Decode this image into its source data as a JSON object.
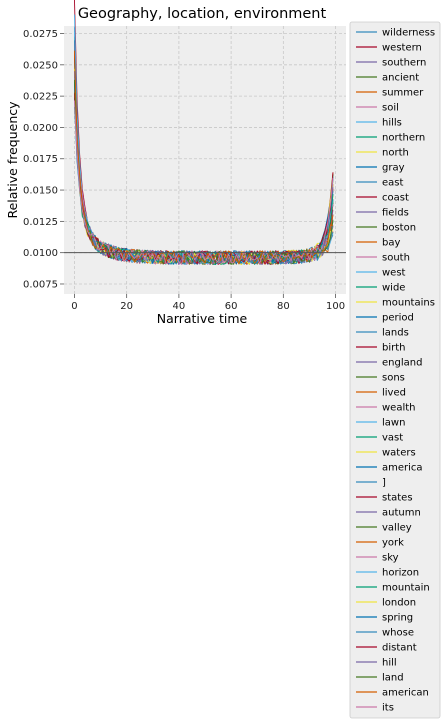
{
  "chart_data": {
    "type": "line",
    "title": "Geography, location, environment",
    "xlabel": "Narrative time",
    "ylabel": "Relative frequency",
    "xlim": [
      -4,
      104
    ],
    "ylim": [
      0.0067,
      0.0281
    ],
    "x_ticks": [
      0,
      20,
      40,
      60,
      80,
      100
    ],
    "x_tick_labels": [
      "0",
      "20",
      "40",
      "60",
      "80",
      "100"
    ],
    "y_ticks": [
      0.0075,
      0.01,
      0.0125,
      0.015,
      0.0175,
      0.02,
      0.0225,
      0.025,
      0.0275
    ],
    "y_tick_labels": [
      "0.0075",
      "0.0100",
      "0.0125",
      "0.0150",
      "0.0175",
      "0.0200",
      "0.0225",
      "0.0250",
      "0.0275"
    ],
    "reference_line_y": 0.01,
    "grid": true,
    "legend_position": "outside-right",
    "x_range": [
      0,
      99
    ],
    "series_shape_note": "",
    "palette": [
      "#348ABD",
      "#A60628",
      "#7A68A6",
      "#467821",
      "#D55E00",
      "#CC79A7",
      "#56B4E9",
      "#009E73",
      "#F0E442",
      "#0072B2"
    ],
    "series": [
      {
        "name": "wilderness",
        "start": 0.0245
      },
      {
        "name": "western",
        "start": 0.0272
      },
      {
        "name": "southern",
        "start": 0.0215
      },
      {
        "name": "ancient",
        "start": 0.0205
      },
      {
        "name": "summer",
        "start": 0.0232
      },
      {
        "name": "soil",
        "start": 0.0198
      },
      {
        "name": "hills",
        "start": 0.0225
      },
      {
        "name": "northern",
        "start": 0.0238
      },
      {
        "name": "north",
        "start": 0.0195
      },
      {
        "name": "gray",
        "start": 0.0188
      },
      {
        "name": "east",
        "start": 0.0228
      },
      {
        "name": "coast",
        "start": 0.0212
      },
      {
        "name": "fields",
        "start": 0.0202
      },
      {
        "name": "boston",
        "start": 0.0218
      },
      {
        "name": "bay",
        "start": 0.0192
      },
      {
        "name": "south",
        "start": 0.0208
      },
      {
        "name": "west",
        "start": 0.0258
      },
      {
        "name": "wide",
        "start": 0.0185
      },
      {
        "name": "mountains",
        "start": 0.0222
      },
      {
        "name": "period",
        "start": 0.0196
      },
      {
        "name": "lands",
        "start": 0.0233
      },
      {
        "name": "birth",
        "start": 0.0211
      },
      {
        "name": "england",
        "start": 0.0203
      },
      {
        "name": "sons",
        "start": 0.019
      },
      {
        "name": "lived",
        "start": 0.0226
      },
      {
        "name": "wealth",
        "start": 0.0199
      },
      {
        "name": "lawn",
        "start": 0.0236
      },
      {
        "name": "vast",
        "start": 0.0209
      },
      {
        "name": "waters",
        "start": 0.0193
      },
      {
        "name": "america",
        "start": 0.0219
      },
      {
        "name": "]",
        "start": 0.0187
      },
      {
        "name": "states",
        "start": 0.0224
      },
      {
        "name": "autumn",
        "start": 0.0201
      },
      {
        "name": "valley",
        "start": 0.0214
      },
      {
        "name": "york",
        "start": 0.0197
      },
      {
        "name": "sky",
        "start": 0.0229
      },
      {
        "name": "horizon",
        "start": 0.0206
      },
      {
        "name": "mountain",
        "start": 0.0191
      },
      {
        "name": "london",
        "start": 0.0217
      },
      {
        "name": "spring",
        "start": 0.02
      },
      {
        "name": "whose",
        "start": 0.0231
      },
      {
        "name": "distant",
        "start": 0.0194
      },
      {
        "name": "hill",
        "start": 0.0213
      },
      {
        "name": "land",
        "start": 0.0204
      },
      {
        "name": "american",
        "start": 0.0221
      },
      {
        "name": "its",
        "start": 0.0189
      }
    ]
  }
}
